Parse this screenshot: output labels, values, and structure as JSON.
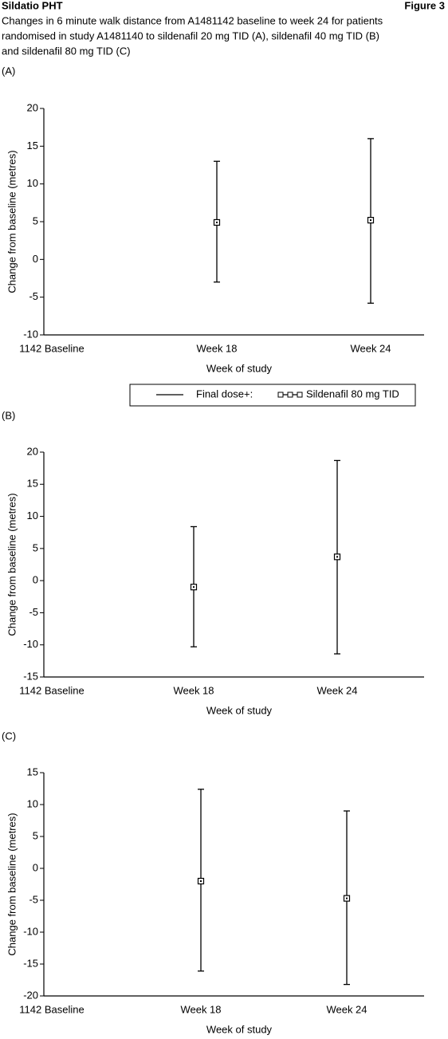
{
  "header": {
    "left": "Sildatio PHT",
    "right": "Figure 3"
  },
  "caption": [
    "Changes in 6 minute walk distance from A1481142 baseline to week 24 for patients",
    "randomised in study A1481140 to sildenafil 20 mg TID (A), sildenafil 40 mg TID (B)",
    "and sildenafil 80 mg TID (C)"
  ],
  "chart_data": [
    {
      "type": "errorbar",
      "label": "(A)",
      "xlabel": "Week of study",
      "ylabel": "Change from baseline (metres)",
      "categories": [
        "1142 Baseline",
        "Week 18",
        "Week 24"
      ],
      "legend_title": "Final dose+:",
      "series": [
        {
          "name": "Sildenafil 80 mg TID",
          "color": "#000000",
          "values": [
            null,
            4.9,
            5.2
          ],
          "lower": [
            null,
            -3.0,
            -5.8
          ],
          "upper": [
            null,
            13.0,
            16.0
          ]
        }
      ],
      "ylim": [
        -10,
        20
      ],
      "yticks": [
        -10,
        -5,
        0,
        5,
        10,
        15,
        20
      ]
    },
    {
      "type": "errorbar",
      "label": "(B)",
      "xlabel": "Week of study",
      "ylabel": "Change from baseline (metres)",
      "categories": [
        "1142 Baseline",
        "Week 18",
        "Week 24"
      ],
      "series": [
        {
          "color": "#000000",
          "values": [
            null,
            -1.0,
            3.7
          ],
          "lower": [
            null,
            -10.3,
            -11.4
          ],
          "upper": [
            null,
            8.4,
            18.7
          ]
        }
      ],
      "ylim": [
        -15,
        20
      ],
      "yticks": [
        -15,
        -10,
        -5,
        0,
        5,
        10,
        15,
        20
      ]
    },
    {
      "type": "errorbar",
      "label": "(C)",
      "xlabel": "Week of study",
      "ylabel": "Change from baseline (metres)",
      "categories": [
        "1142 Baseline",
        "Week 18",
        "Week 24"
      ],
      "series": [
        {
          "color": "#000000",
          "values": [
            null,
            -2.0,
            -4.7
          ],
          "lower": [
            null,
            -16.1,
            -18.2
          ],
          "upper": [
            null,
            12.4,
            9.0
          ]
        }
      ],
      "ylim": [
        -20,
        15
      ],
      "yticks": [
        -20,
        -15,
        -10,
        -5,
        0,
        5,
        10,
        15
      ]
    }
  ]
}
